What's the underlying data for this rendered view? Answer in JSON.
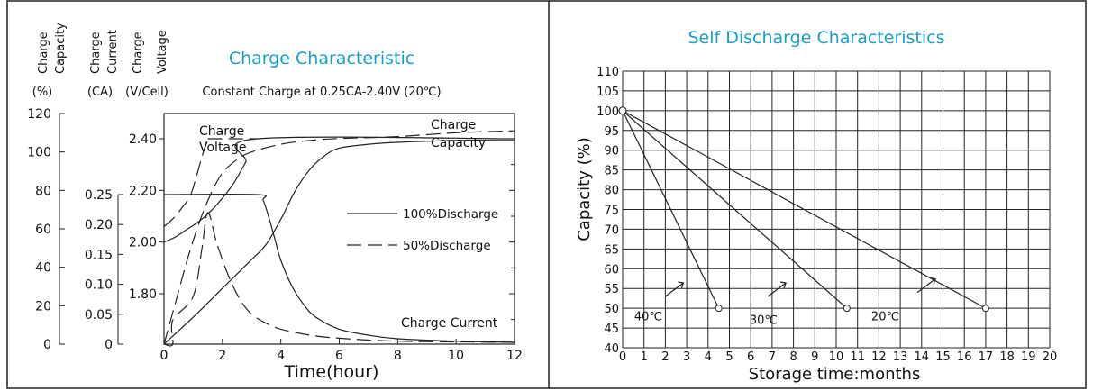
{
  "chart_data": [
    {
      "type": "line",
      "title": "Charge Characteristic",
      "subtitle": "Constant Charge at 0.25CA-2.40V  (20℃)",
      "xlabel": "Time(hour)",
      "xlim": [
        0,
        12
      ],
      "x_ticks": [
        "0",
        "2",
        "4",
        "6",
        "8",
        "10",
        "12"
      ],
      "axes": [
        {
          "id": "capacity",
          "header": "Charge Capacity",
          "unit": "(%)",
          "ylim": [
            0,
            120
          ],
          "ticks": [
            "0",
            "20",
            "40",
            "60",
            "80",
            "100",
            "120"
          ]
        },
        {
          "id": "current",
          "header": "Charge Current",
          "unit": "(CA)",
          "ylim": [
            0,
            0.25
          ],
          "ticks": [
            "0",
            "0.05",
            "0.10",
            "0.15",
            "0.20",
            "0.25"
          ]
        },
        {
          "id": "voltage",
          "header": "Charge Voltage",
          "unit": "(V/Cell)",
          "ylim": [
            1.6,
            2.5
          ],
          "ticks": [
            "1.80",
            "2.00",
            "2.20",
            "2.40"
          ]
        }
      ],
      "legend": {
        "position": "right",
        "solid": "100%Discharge",
        "dashed": "50%Discharge"
      },
      "annotations": {
        "voltage": [
          "Charge",
          "Voltage"
        ],
        "capacity": [
          "Charge",
          "Capacity"
        ],
        "current": "Charge Current"
      },
      "series": [
        {
          "name": "100%Discharge",
          "axis": "voltage",
          "style": "solid",
          "x": [
            0,
            0.4,
            0.8,
            1.2,
            1.6,
            2.0,
            2.4,
            2.8,
            3.2,
            12
          ],
          "y": [
            2.0,
            2.02,
            2.05,
            2.08,
            2.12,
            2.17,
            2.23,
            2.31,
            2.4,
            2.4
          ]
        },
        {
          "name": "50%Discharge",
          "axis": "voltage",
          "style": "dashed",
          "x": [
            0,
            0.3,
            0.6,
            0.9,
            1.1,
            1.3,
            1.5
          ],
          "y": [
            2.06,
            2.09,
            2.13,
            2.18,
            2.25,
            2.33,
            2.4
          ]
        },
        {
          "name": "100%Discharge",
          "axis": "current",
          "style": "solid",
          "x": [
            0,
            3.2,
            3.4,
            3.6,
            3.8,
            4.0,
            4.4,
            4.8,
            5.2,
            6.0,
            7.0,
            8.0,
            10.0,
            12.0
          ],
          "y": [
            0.25,
            0.25,
            0.24,
            0.21,
            0.175,
            0.14,
            0.095,
            0.065,
            0.045,
            0.025,
            0.015,
            0.009,
            0.005,
            0.003
          ]
        },
        {
          "name": "50%Discharge",
          "axis": "current",
          "style": "dashed",
          "x": [
            0,
            0.3,
            0.3,
            1.0,
            1.3,
            1.5,
            1.8,
            2.2,
            2.6,
            3.0,
            3.5,
            4.0,
            5.0,
            6.0,
            8.0,
            12.0
          ],
          "y": [
            0.0,
            0.0,
            0.04,
            0.08,
            0.16,
            0.22,
            0.17,
            0.115,
            0.075,
            0.05,
            0.035,
            0.025,
            0.015,
            0.01,
            0.005,
            0.003
          ]
        },
        {
          "name": "100%Discharge",
          "axis": "capacity",
          "style": "solid",
          "x": [
            0,
            1,
            2,
            3,
            3.5,
            4,
            4.5,
            5,
            5.5,
            6,
            7,
            8,
            10,
            12
          ],
          "y": [
            0,
            14,
            29,
            44,
            52,
            65,
            80,
            91,
            98,
            102,
            104,
            105,
            106,
            106
          ]
        },
        {
          "name": "50%Discharge",
          "axis": "capacity",
          "style": "dashed",
          "x": [
            0,
            0.4,
            0.8,
            1.2,
            1.6,
            2.0,
            2.5,
            3.0,
            4.0,
            5.0,
            6.0,
            8.0,
            10.0,
            12.0
          ],
          "y": [
            0,
            22,
            44,
            63,
            78,
            89,
            96,
            100,
            104,
            106,
            107,
            108,
            110,
            111
          ]
        }
      ]
    },
    {
      "type": "line",
      "title": "Self Discharge Characteristics",
      "xlabel": "Storage time:months",
      "ylabel": "Capacity (%)",
      "xlim": [
        0,
        20
      ],
      "ylim": [
        40,
        110
      ],
      "x_ticks": [
        "0",
        "1",
        "2",
        "3",
        "4",
        "5",
        "6",
        "7",
        "8",
        "9",
        "10",
        "11",
        "12",
        "13",
        "14",
        "15",
        "16",
        "17",
        "18",
        "19",
        "20"
      ],
      "y_ticks": [
        "40",
        "45",
        "50",
        "55",
        "60",
        "65",
        "70",
        "75",
        "80",
        "85",
        "90",
        "95",
        "100",
        "105",
        "110"
      ],
      "grid": true,
      "series": [
        {
          "name": "40℃",
          "x": [
            0,
            4.5
          ],
          "y": [
            100,
            50
          ]
        },
        {
          "name": "30℃",
          "x": [
            0,
            10.5
          ],
          "y": [
            100,
            50
          ]
        },
        {
          "name": "20℃",
          "x": [
            0,
            17
          ],
          "y": [
            100,
            50
          ]
        }
      ]
    }
  ]
}
